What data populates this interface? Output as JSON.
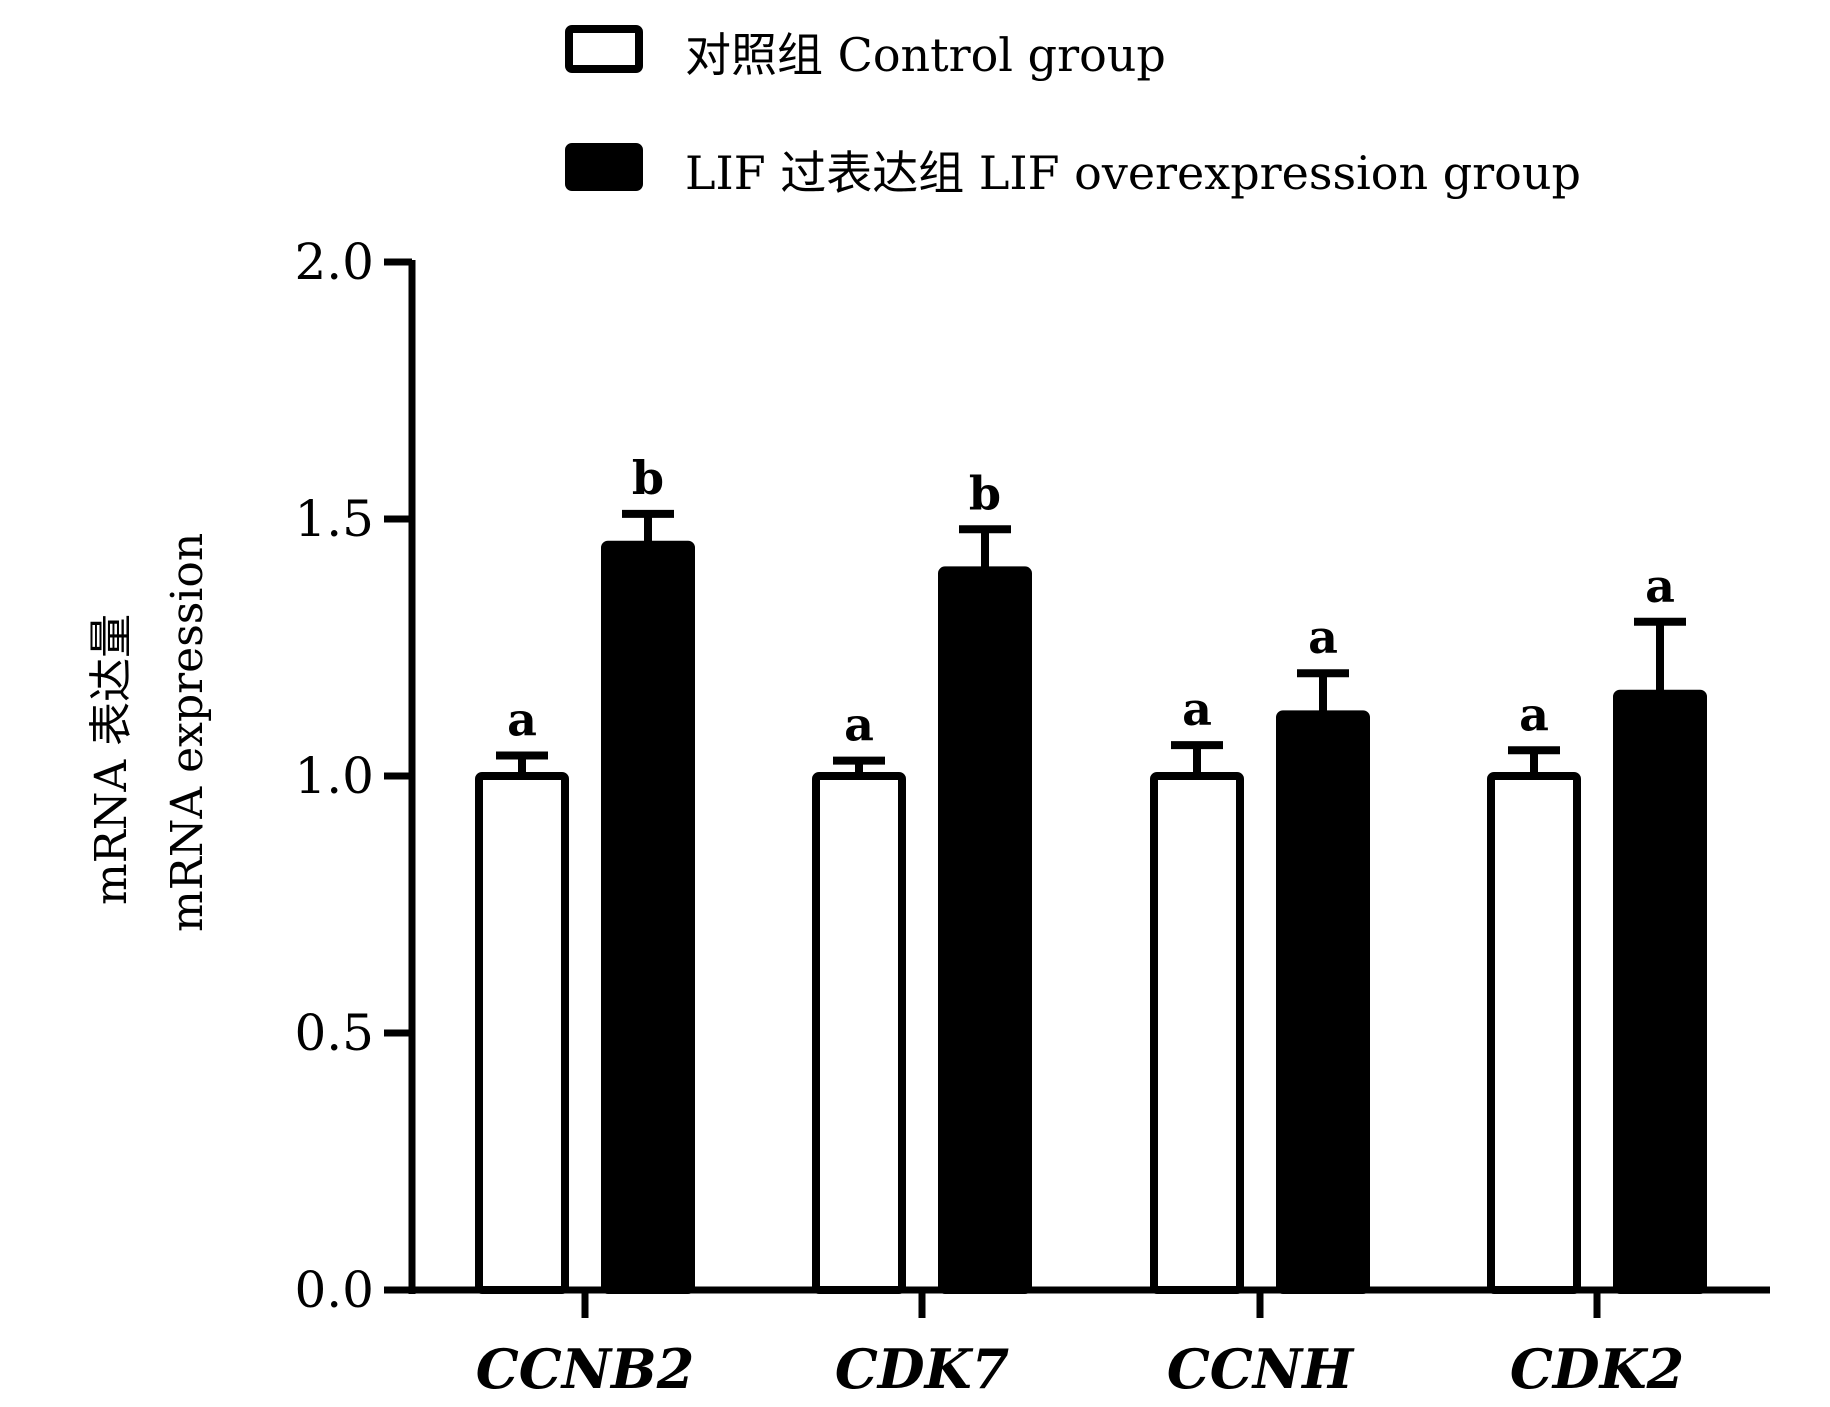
{
  "legend": {
    "control_label": "对照组 Control group",
    "lif_label": "LIF 过表达组 LIF overexpression group"
  },
  "y_axis": {
    "label_line1": "mRNA 表达量",
    "label_line2": "mRNA expression"
  },
  "colors": {
    "control_fill": "#ffffff",
    "lif_fill": "#000000",
    "stroke": "#000000"
  },
  "chart_data": {
    "type": "bar",
    "categories": [
      "CCNB2",
      "CDK7",
      "CCNH",
      "CDK2"
    ],
    "series": [
      {
        "name": "对照组 Control group",
        "values": [
          1.0,
          1.0,
          1.0,
          1.0
        ],
        "errors": [
          0.04,
          0.03,
          0.06,
          0.05
        ],
        "labels": [
          "a",
          "a",
          "a",
          "a"
        ]
      },
      {
        "name": "LIF 过表达组 LIF overexpression group",
        "values": [
          1.45,
          1.4,
          1.12,
          1.16
        ],
        "errors": [
          0.06,
          0.08,
          0.08,
          0.14
        ],
        "labels": [
          "b",
          "b",
          "a",
          "a"
        ]
      }
    ],
    "ylim": [
      0,
      2.0
    ],
    "yticks": [
      "0.0",
      "0.5",
      "1.0",
      "1.5",
      "2.0"
    ],
    "ytick_values": [
      0,
      0.5,
      1.0,
      1.5,
      2.0
    ],
    "legend_position": "top",
    "grid": false
  }
}
